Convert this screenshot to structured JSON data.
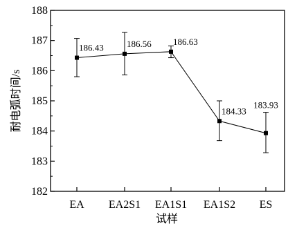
{
  "chart_data": {
    "type": "line",
    "categories": [
      "EA",
      "EA2S1",
      "EA1S1",
      "EA1S2",
      "ES"
    ],
    "series": [
      {
        "values": [
          186.43,
          186.56,
          186.63,
          184.33,
          183.93
        ],
        "error_upper": [
          187.07,
          187.27,
          186.82,
          185.0,
          184.62
        ],
        "error_lower": [
          185.8,
          185.86,
          186.43,
          183.68,
          183.28
        ],
        "data_labels": [
          "186.43",
          "186.56",
          "186.63",
          "184.33",
          "183.93"
        ]
      }
    ],
    "ylabel": "耐电弧时间/s",
    "xlabel": "试样",
    "ylim": [
      182,
      188
    ],
    "yticks": [
      "182",
      "183",
      "184",
      "185",
      "186",
      "187",
      "188"
    ],
    "grid": false,
    "colors": {
      "line": "#000000",
      "marker": "#000000"
    }
  }
}
